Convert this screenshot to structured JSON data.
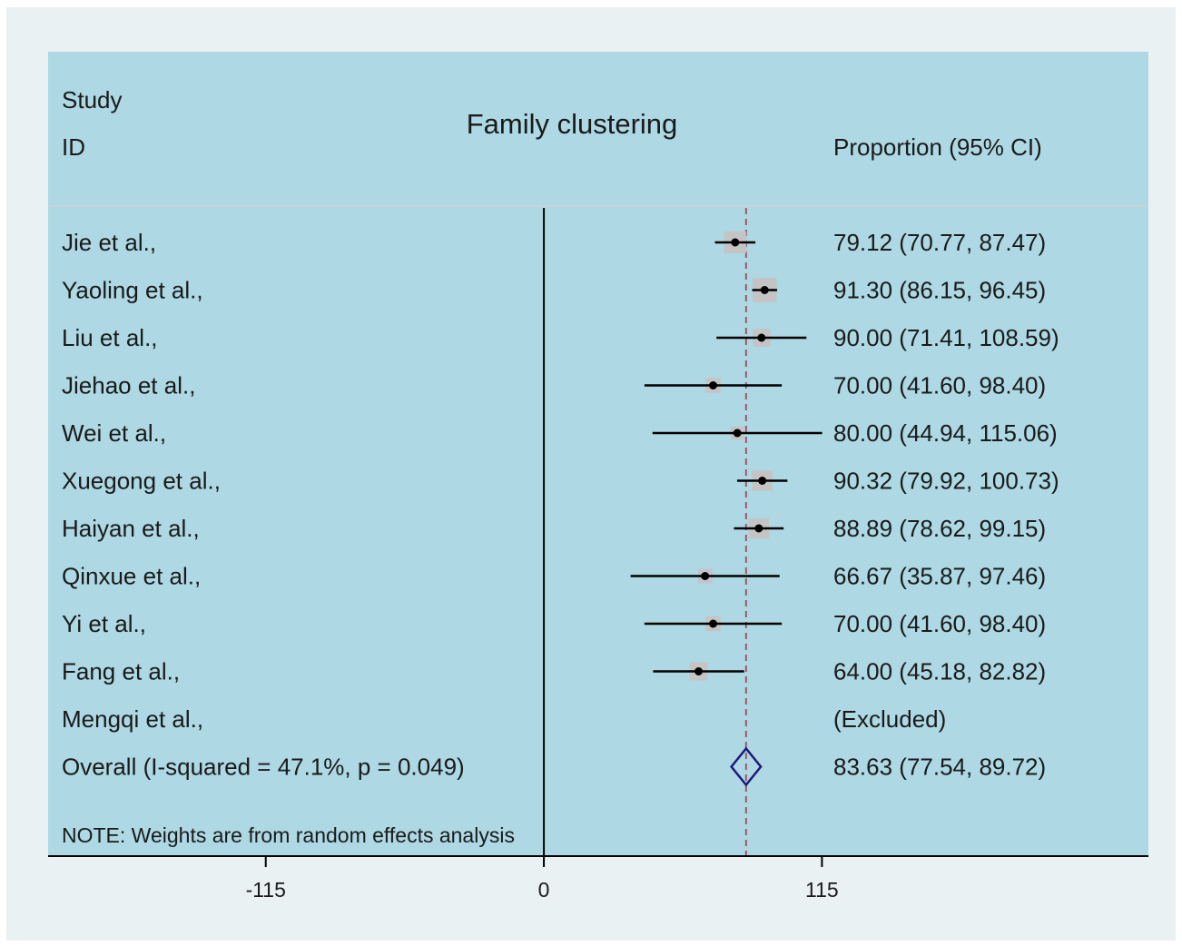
{
  "header": {
    "study_label": "Study",
    "id_label": "ID",
    "effect_label": "Proportion (95% CI)"
  },
  "note": "NOTE: Weights are from random effects analysis",
  "colors": {
    "outer_bg": "#eaf1f3",
    "plot_bg": "#add8e4",
    "weight_box": "#c4c4c4",
    "ci_line": "#000000",
    "ref_line": "#a0576a",
    "diamond": "#1b1b7a"
  },
  "chart_data": {
    "type": "forest",
    "title": "Family clustering",
    "xlim": [
      -205,
      250
    ],
    "ticks": [
      {
        "value": -115,
        "label": "-115"
      },
      {
        "value": 0,
        "label": "0"
      },
      {
        "value": 115,
        "label": "115"
      }
    ],
    "null_line": 0,
    "pooled_reference": 83.63,
    "studies": [
      {
        "label": "Jie et al.,",
        "estimate": 79.12,
        "lower": 70.77,
        "upper": 87.47,
        "text": "79.12 (70.77, 87.47)",
        "weight": 1.1
      },
      {
        "label": "Yaoling et al.,",
        "estimate": 91.3,
        "lower": 86.15,
        "upper": 96.45,
        "text": "91.30 (86.15, 96.45)",
        "weight": 1.3
      },
      {
        "label": "Liu et al.,",
        "estimate": 90.0,
        "lower": 71.41,
        "upper": 108.59,
        "text": "90.00 (71.41, 108.59)",
        "weight": 0.7
      },
      {
        "label": "Jiehao et al.,",
        "estimate": 70.0,
        "lower": 41.6,
        "upper": 98.4,
        "text": "70.00 (41.60, 98.40)",
        "weight": 0.45
      },
      {
        "label": "Wei et al.,",
        "estimate": 80.0,
        "lower": 44.94,
        "upper": 115.06,
        "text": "80.00 (44.94, 115.06)",
        "weight": 0.3
      },
      {
        "label": "Xuegong et al.,",
        "estimate": 90.32,
        "lower": 79.92,
        "upper": 100.73,
        "text": "90.32 (79.92, 100.73)",
        "weight": 0.95
      },
      {
        "label": "Haiyan et al.,",
        "estimate": 88.89,
        "lower": 78.62,
        "upper": 99.15,
        "text": "88.89 (78.62, 99.15)",
        "weight": 0.95
      },
      {
        "label": "Qinxue et al.,",
        "estimate": 66.67,
        "lower": 35.87,
        "upper": 97.46,
        "text": "66.67 (35.87, 97.46)",
        "weight": 0.4
      },
      {
        "label": "Yi et al.,",
        "estimate": 70.0,
        "lower": 41.6,
        "upper": 98.4,
        "text": "70.00 (41.60, 98.40)",
        "weight": 0.45
      },
      {
        "label": "Fang et al.,",
        "estimate": 64.0,
        "lower": 45.18,
        "upper": 82.82,
        "text": "64.00 (45.18, 82.82)",
        "weight": 0.75
      },
      {
        "label": "Mengqi et al.,",
        "estimate": null,
        "lower": null,
        "upper": null,
        "text": "(Excluded)",
        "weight": 0
      }
    ],
    "overall": {
      "label": "Overall  (I-squared = 47.1%, p = 0.049)",
      "estimate": 83.63,
      "lower": 77.54,
      "upper": 89.72,
      "text": "83.63 (77.54, 89.72)"
    }
  }
}
